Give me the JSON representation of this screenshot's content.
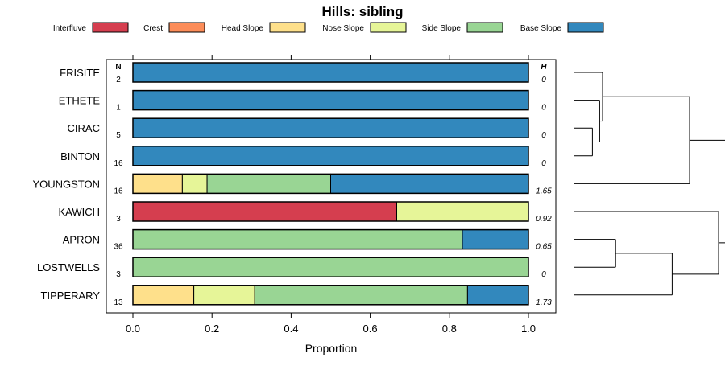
{
  "chart_data": {
    "type": "stacked-bar",
    "title": "Hills: sibling",
    "xlabel": "Proportion",
    "xlim": [
      0,
      1
    ],
    "x_ticks": [
      "0.0",
      "0.2",
      "0.4",
      "0.6",
      "0.8",
      "1.0"
    ],
    "n_header": "N",
    "h_header": "H",
    "legend_placement": "top",
    "categories": [
      {
        "name": "Interfluve",
        "color": "#d53e4f"
      },
      {
        "name": "Crest",
        "color": "#fc8d59"
      },
      {
        "name": "Head Slope",
        "color": "#fee08b"
      },
      {
        "name": "Nose Slope",
        "color": "#e6f598"
      },
      {
        "name": "Side Slope",
        "color": "#99d594"
      },
      {
        "name": "Base Slope",
        "color": "#3288bd"
      }
    ],
    "rows": [
      {
        "label": "FRISITE",
        "n": "2",
        "h": "0",
        "values": [
          0,
          0,
          0,
          0,
          0,
          1.0
        ]
      },
      {
        "label": "ETHETE",
        "n": "1",
        "h": "0",
        "values": [
          0,
          0,
          0,
          0,
          0,
          1.0
        ]
      },
      {
        "label": "CIRAC",
        "n": "5",
        "h": "0",
        "values": [
          0,
          0,
          0,
          0,
          0,
          1.0
        ]
      },
      {
        "label": "BINTON",
        "n": "16",
        "h": "0",
        "values": [
          0,
          0,
          0,
          0,
          0,
          1.0
        ]
      },
      {
        "label": "YOUNGSTON",
        "n": "16",
        "h": "1.65",
        "values": [
          0,
          0,
          0.125,
          0.0625,
          0.3125,
          0.5
        ]
      },
      {
        "label": "KAWICH",
        "n": "3",
        "h": "0.92",
        "values": [
          0.667,
          0,
          0,
          0.333,
          0,
          0
        ]
      },
      {
        "label": "APRON",
        "n": "36",
        "h": "0.65",
        "values": [
          0,
          0,
          0,
          0,
          0.833,
          0.167
        ]
      },
      {
        "label": "LOSTWELLS",
        "n": "3",
        "h": "0",
        "values": [
          0,
          0,
          0,
          0,
          1.0,
          0
        ]
      },
      {
        "label": "TIPPERARY",
        "n": "13",
        "h": "1.73",
        "values": [
          0,
          0,
          0.154,
          0.154,
          0.538,
          0.154
        ]
      }
    ],
    "dendrogram": {
      "type": "hierarchical-clustering",
      "leaf_order": [
        "FRISITE",
        "ETHETE",
        "CIRAC",
        "BINTON",
        "YOUNGSTON",
        "KAWICH",
        "APRON",
        "LOSTWELLS",
        "TIPPERARY"
      ],
      "merges": [
        {
          "a": "leaf:2",
          "b": "leaf:3",
          "height": 0.13
        },
        {
          "a": "leaf:1",
          "b": "node:0",
          "height": 0.18
        },
        {
          "a": "leaf:0",
          "b": "node:1",
          "height": 0.2
        },
        {
          "a": "node:2",
          "b": "leaf:4",
          "height": 0.8
        },
        {
          "a": "leaf:6",
          "b": "leaf:7",
          "height": 0.29
        },
        {
          "a": "node:4",
          "b": "leaf:8",
          "height": 0.68
        },
        {
          "a": "leaf:5",
          "b": "node:5",
          "height": 1.0
        },
        {
          "a": "node:3",
          "b": "node:6",
          "height": 1.8
        }
      ]
    }
  }
}
